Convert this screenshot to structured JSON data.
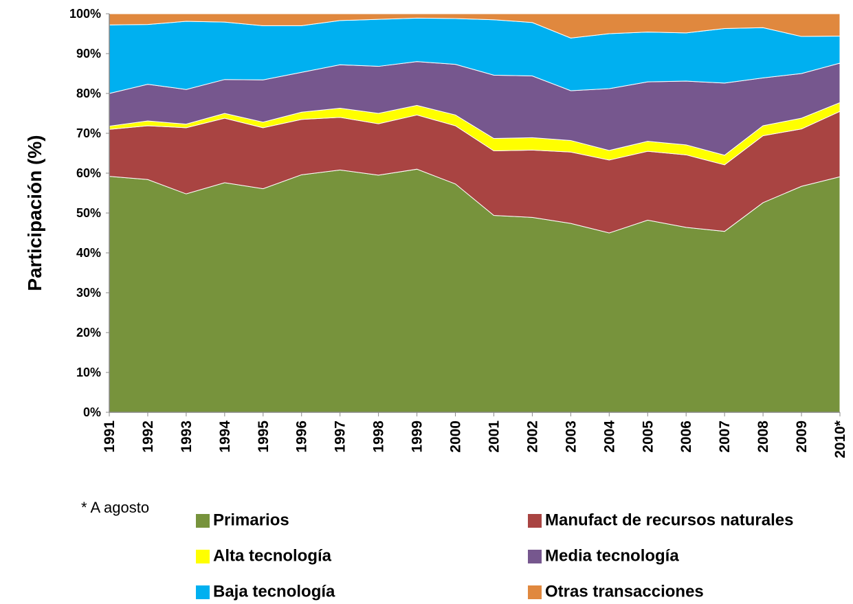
{
  "chart_data": {
    "type": "stacked_area",
    "ylabel": "Participación (%)",
    "annotation": "* A agosto",
    "categories": [
      "1991",
      "1992",
      "1993",
      "1994",
      "1995",
      "1996",
      "1997",
      "1998",
      "1999",
      "2000",
      "2001",
      "2002",
      "2003",
      "2004",
      "2005",
      "2006",
      "2007",
      "2008",
      "2009",
      "2010*"
    ],
    "ylim": [
      0,
      100
    ],
    "yticks": [
      {
        "value": 0,
        "label": "0%"
      },
      {
        "value": 10,
        "label": "10%"
      },
      {
        "value": 20,
        "label": "20%"
      },
      {
        "value": 30,
        "label": "30%"
      },
      {
        "value": 40,
        "label": "40%"
      },
      {
        "value": 50,
        "label": "50%"
      },
      {
        "value": 60,
        "label": "60%"
      },
      {
        "value": 70,
        "label": "70%"
      },
      {
        "value": 80,
        "label": "80%"
      },
      {
        "value": 90,
        "label": "90%"
      },
      {
        "value": 100,
        "label": "100%"
      }
    ],
    "grid": false,
    "series": [
      {
        "name": "Primarios",
        "color": "#77933c",
        "values": [
          59.2,
          58.4,
          54.8,
          57.6,
          56.1,
          59.6,
          60.8,
          59.5,
          61.0,
          57.3,
          49.4,
          48.9,
          47.4,
          45.0,
          48.2,
          46.4,
          45.4,
          52.6,
          56.7,
          59.1
        ]
      },
      {
        "name": "Manufact de recursos naturales",
        "color": "#a94442",
        "values": [
          11.8,
          13.5,
          16.6,
          16.2,
          15.3,
          13.9,
          13.2,
          12.9,
          13.6,
          14.6,
          16.2,
          16.9,
          17.9,
          18.3,
          17.3,
          18.2,
          16.7,
          16.8,
          14.4,
          16.4
        ]
      },
      {
        "name": "Alta tecnología",
        "color": "#ffff00",
        "values": [
          0.8,
          1.2,
          0.9,
          1.2,
          1.4,
          1.8,
          2.3,
          2.6,
          2.4,
          2.7,
          3.1,
          3.1,
          2.9,
          2.4,
          2.5,
          2.5,
          2.4,
          2.5,
          2.7,
          2.2
        ]
      },
      {
        "name": "Media tecnología",
        "color": "#76578e",
        "values": [
          8.2,
          9.2,
          8.7,
          8.5,
          10.6,
          10.0,
          10.9,
          11.8,
          11.0,
          12.7,
          15.9,
          15.5,
          12.5,
          15.5,
          14.9,
          16.0,
          18.1,
          12.0,
          11.2,
          9.9
        ]
      },
      {
        "name": "Baja tecnología",
        "color": "#00b0f0",
        "values": [
          17.2,
          15.0,
          17.1,
          14.4,
          13.6,
          11.7,
          11.1,
          11.8,
          10.9,
          11.5,
          13.9,
          13.4,
          13.2,
          13.8,
          12.5,
          12.1,
          13.7,
          12.6,
          9.3,
          6.8
        ]
      },
      {
        "name": "Otras transacciones",
        "color": "#e0883e",
        "values": [
          2.8,
          2.7,
          1.9,
          2.1,
          3.0,
          3.0,
          1.7,
          1.4,
          1.1,
          1.2,
          1.5,
          2.2,
          6.1,
          5.0,
          4.6,
          4.8,
          3.7,
          3.5,
          5.7,
          5.6
        ]
      }
    ]
  }
}
